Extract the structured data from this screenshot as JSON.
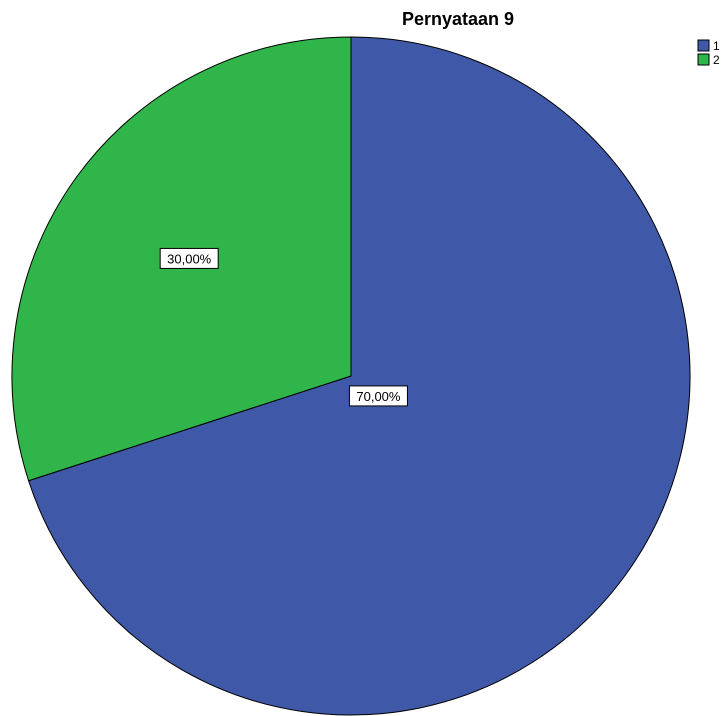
{
  "chart_data": {
    "type": "pie",
    "title": "Pernyataan 9",
    "categories": [
      "1",
      "2"
    ],
    "values": [
      70,
      30
    ],
    "value_labels": [
      "70,00%",
      "30,00%"
    ],
    "colors": [
      "#3f59a8",
      "#2fb54a"
    ],
    "start_angle": "12 o'clock",
    "direction": "clockwise",
    "legend": {
      "position": "top-right",
      "items": [
        "1",
        "2"
      ]
    }
  }
}
